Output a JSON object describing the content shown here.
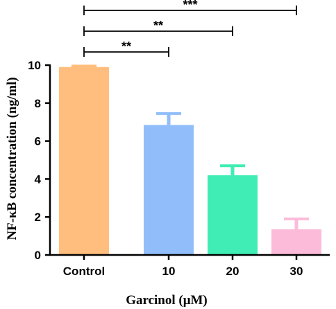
{
  "chart_data": {
    "type": "bar",
    "categories": [
      "Control",
      "10",
      "20",
      "30"
    ],
    "values": [
      9.9,
      6.85,
      4.2,
      1.35
    ],
    "errors": [
      0.05,
      0.6,
      0.5,
      0.55
    ],
    "colors": [
      "#FFBE7D",
      "#91BEFA",
      "#40EDB4",
      "#FDBBDA"
    ],
    "xlabel": "Garcinol (μM)",
    "ylabel": "NF-κB concentration (ng/ml)",
    "ylim": [
      0,
      10
    ],
    "yticks": [
      "0",
      "2",
      "4",
      "6",
      "8",
      "10"
    ],
    "grid": false,
    "significance": [
      {
        "from": 0,
        "to": 1,
        "label": "**"
      },
      {
        "from": 0,
        "to": 2,
        "label": "**"
      },
      {
        "from": 0,
        "to": 3,
        "label": "***"
      }
    ]
  }
}
